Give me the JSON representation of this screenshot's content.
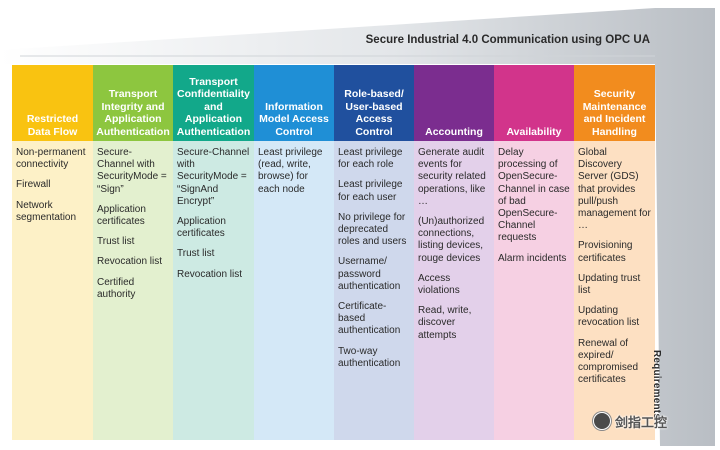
{
  "title": "Secure Industrial 4.0 Communication using OPC UA",
  "axis_label": "Requirements",
  "watermark_text": "剑指工控",
  "columns": [
    {
      "header": "Restricted Data Flow",
      "head_color": "#f9c311",
      "body_color": "#fdf1c7",
      "items": [
        "Non-permanent connectivity",
        "Firewall",
        "Network segmentation"
      ]
    },
    {
      "header": "Transport Integrity and Application Authentication",
      "head_color": "#8dc63f",
      "body_color": "#e3f0cf",
      "items": [
        "Secure-Channel with SecurityMode = “Sign”",
        "Application certificates",
        "Trust list",
        "Revocation list",
        "Certified authority"
      ]
    },
    {
      "header": "Transport Confidentiality and Application Authentication",
      "head_color": "#12a88a",
      "body_color": "#cdeae3",
      "items": [
        "Secure-Channel with SecurityMode = “SignAnd Encrypt”",
        "Application certificates",
        "Trust list",
        "Revocation list"
      ]
    },
    {
      "header": "Information Model Access Control",
      "head_color": "#1f8fd6",
      "body_color": "#d4e8f7",
      "items": [
        "Least privilege (read, write, browse) for each node"
      ]
    },
    {
      "header": "Role-based/ User-based Access Control",
      "head_color": "#20509e",
      "body_color": "#cfd8ec",
      "items": [
        "Least privilege for each role",
        "Least privilege for each user",
        "No privilege for deprecated roles and users",
        "Username/ password authentication",
        "Certificate-based authentication",
        "Two-way authentication"
      ]
    },
    {
      "header": "Accounting",
      "head_color": "#7b2d8f",
      "body_color": "#e3d0ea",
      "items": [
        "Generate audit events for security related operations, like …",
        "(Un)authorized connections, listing devices, rouge devices",
        "Access violations",
        "Read, write, discover attempts"
      ]
    },
    {
      "header": "Availability",
      "head_color": "#d2348b",
      "body_color": "#f6d0e3",
      "items": [
        "Delay processing of OpenSecure-Channel in case of bad OpenSecure-Channel requests",
        "Alarm incidents"
      ]
    },
    {
      "header": "Security Maintenance and Incident Handling",
      "head_color": "#f28c1e",
      "body_color": "#fde0c2",
      "items": [
        "Global Discovery Server (GDS) that provides pull/push management for …",
        "Provisioning certificates",
        "Updating trust list",
        "Updating revocation list",
        "Renewal of expired/ compromised certificates"
      ]
    }
  ]
}
